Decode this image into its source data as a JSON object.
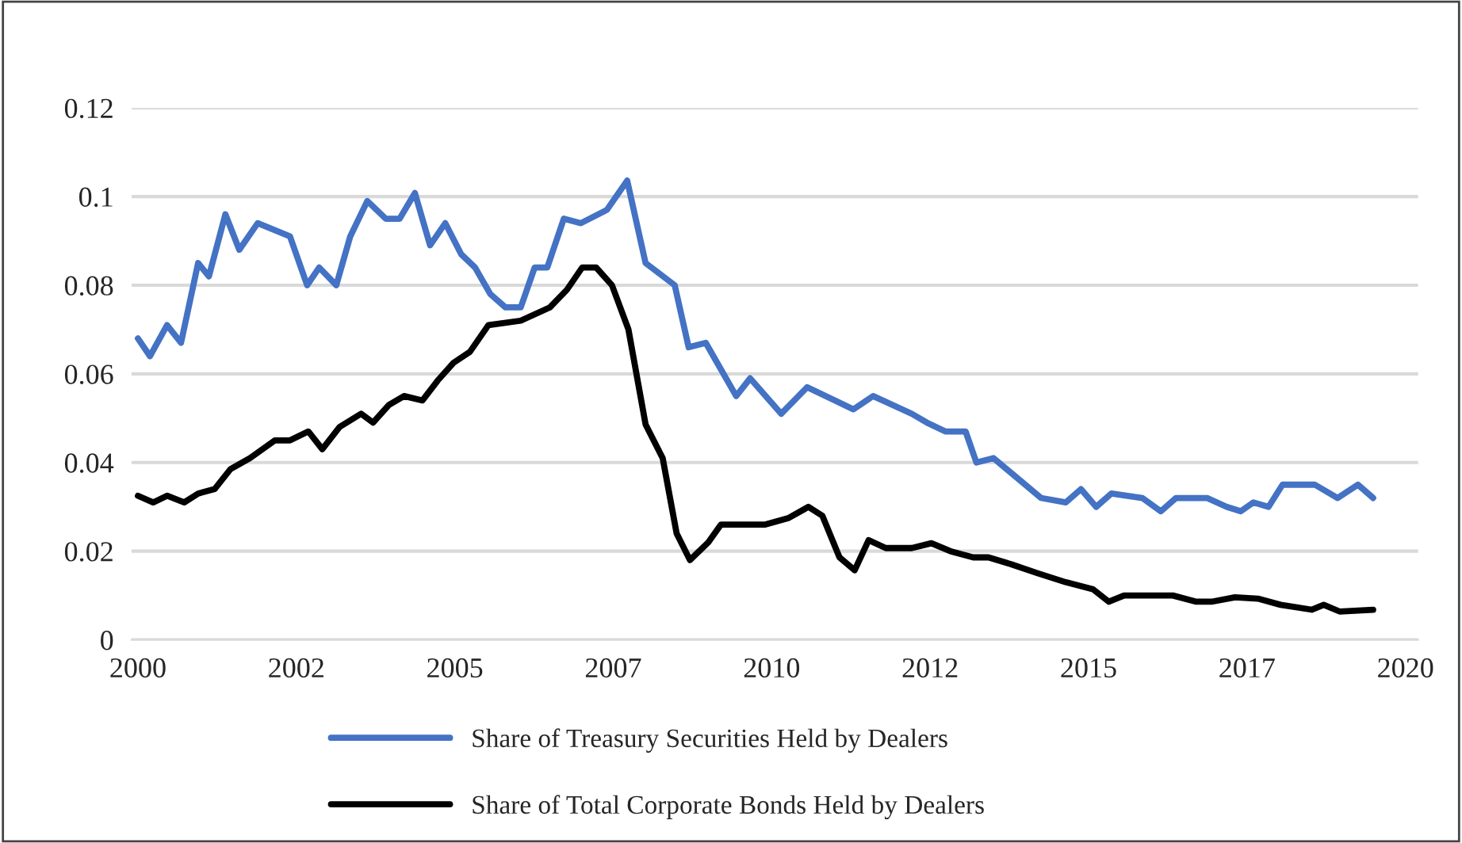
{
  "chart_data": {
    "type": "line",
    "xlim": [
      1999.9,
      2020.2
    ],
    "xticks": [
      2000,
      {
        "value": 2002.5,
        "label": "2002"
      },
      2005,
      {
        "value": 2007.5,
        "label": "2007"
      },
      2010,
      {
        "value": 2012.5,
        "label": "2012"
      },
      2015,
      {
        "value": 2017.5,
        "label": "2017"
      },
      2020
    ],
    "ylim": [
      0,
      0.12
    ],
    "yticks": [
      0,
      0.02,
      0.04,
      0.06,
      0.08,
      0.1,
      0.12
    ],
    "grid": "y",
    "legend": "bottom",
    "marker": "none",
    "line_style": "solid",
    "series": [
      {
        "name": "Share of Treasury Securities Held by Dealers",
        "color": "#4472c4",
        "x": [
          2000.0,
          2000.19,
          2000.46,
          2000.68,
          2000.95,
          2001.12,
          2001.38,
          2001.6,
          2001.89,
          2002.4,
          2002.67,
          2002.86,
          2003.13,
          2003.35,
          2003.62,
          2003.91,
          2004.13,
          2004.37,
          2004.61,
          2004.85,
          2005.1,
          2005.32,
          2005.56,
          2005.8,
          2006.04,
          2006.26,
          2006.46,
          2006.72,
          2006.99,
          2007.4,
          2007.72,
          2008.01,
          2008.47,
          2008.69,
          2008.96,
          2009.44,
          2009.66,
          2010.15,
          2010.56,
          2011.29,
          2011.6,
          2012.21,
          2012.45,
          2012.74,
          2013.06,
          2013.23,
          2013.5,
          2014.25,
          2014.64,
          2014.88,
          2015.12,
          2015.36,
          2015.85,
          2016.14,
          2016.38,
          2016.87,
          2017.18,
          2017.4,
          2017.6,
          2017.84,
          2018.06,
          2018.57,
          2018.93,
          2019.25,
          2019.49
        ],
        "values": [
          0.068,
          0.064,
          0.071,
          0.067,
          0.085,
          0.082,
          0.096,
          0.088,
          0.094,
          0.091,
          0.08,
          0.084,
          0.08,
          0.091,
          0.099,
          0.095,
          0.095,
          0.1008,
          0.089,
          0.094,
          0.087,
          0.084,
          0.078,
          0.075,
          0.075,
          0.084,
          0.084,
          0.095,
          0.094,
          0.097,
          0.1036,
          0.085,
          0.08,
          0.066,
          0.067,
          0.055,
          0.059,
          0.051,
          0.057,
          0.052,
          0.055,
          0.051,
          0.049,
          0.047,
          0.047,
          0.04,
          0.041,
          0.032,
          0.031,
          0.034,
          0.03,
          0.033,
          0.032,
          0.029,
          0.032,
          0.032,
          0.03,
          0.029,
          0.031,
          0.03,
          0.035,
          0.035,
          0.032,
          0.035,
          0.032
        ]
      },
      {
        "name": "Share of Total Corporate Bonds Held by Dealers",
        "color": "#000000",
        "x": [
          2000.0,
          2000.24,
          2000.46,
          2000.73,
          2000.95,
          2001.21,
          2001.46,
          2001.77,
          2002.16,
          2002.4,
          2002.69,
          2002.91,
          2003.18,
          2003.52,
          2003.71,
          2003.96,
          2004.2,
          2004.49,
          2004.73,
          2004.98,
          2005.24,
          2005.53,
          2006.04,
          2006.5,
          2006.77,
          2007.01,
          2007.23,
          2007.48,
          2007.74,
          2008.01,
          2008.28,
          2008.5,
          2008.71,
          2009.0,
          2009.2,
          2009.54,
          2009.9,
          2010.27,
          2010.58,
          2010.8,
          2011.07,
          2011.31,
          2011.53,
          2011.8,
          2012.21,
          2012.52,
          2012.82,
          2013.18,
          2013.42,
          2013.79,
          2014.2,
          2014.64,
          2015.07,
          2015.32,
          2015.56,
          2015.97,
          2016.33,
          2016.7,
          2016.94,
          2017.31,
          2017.67,
          2018.03,
          2018.52,
          2018.71,
          2018.96,
          2019.49
        ],
        "values": [
          0.0325,
          0.031,
          0.0325,
          0.031,
          0.033,
          0.034,
          0.0385,
          0.041,
          0.045,
          0.045,
          0.047,
          0.043,
          0.048,
          0.051,
          0.049,
          0.053,
          0.055,
          0.054,
          0.0585,
          0.0625,
          0.065,
          0.071,
          0.072,
          0.075,
          0.079,
          0.084,
          0.084,
          0.08,
          0.07,
          0.0486,
          0.041,
          0.024,
          0.018,
          0.022,
          0.026,
          0.026,
          0.026,
          0.0275,
          0.03,
          0.028,
          0.0186,
          0.0157,
          0.0225,
          0.0207,
          0.0207,
          0.0218,
          0.02,
          0.0186,
          0.0186,
          0.017,
          0.015,
          0.013,
          0.0114,
          0.0086,
          0.01,
          0.01,
          0.01,
          0.0086,
          0.0086,
          0.0096,
          0.0093,
          0.0079,
          0.0068,
          0.0079,
          0.0064,
          0.0068
        ]
      }
    ]
  }
}
